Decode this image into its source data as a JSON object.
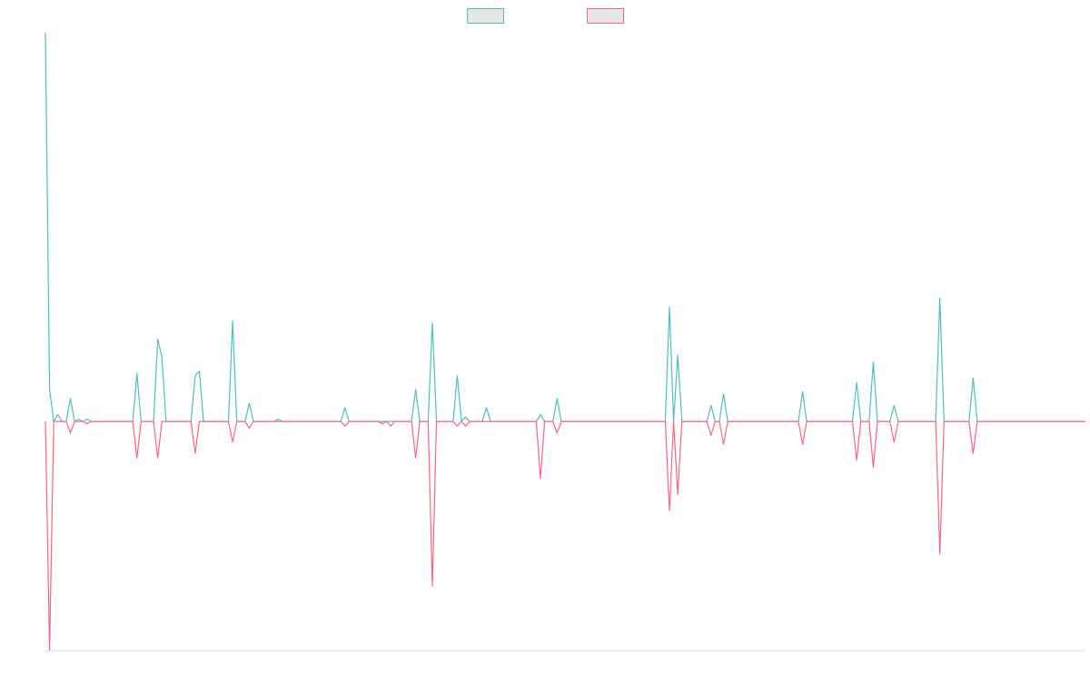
{
  "chart_data": {
    "type": "line",
    "title": "",
    "xlabel": "",
    "ylabel": "",
    "legend": {
      "position": "top-center",
      "entries": [
        {
          "name": "",
          "color": "#4bc0c0"
        },
        {
          "name": "",
          "color": "#ff6384"
        }
      ]
    },
    "grid": false,
    "ylim": [
      -1.0,
      1.7
    ],
    "x_count": 251,
    "series": [
      {
        "name": "",
        "color": "#4bc0c0",
        "fill": "#e6e6e6",
        "spikes": [
          [
            0,
            1.7
          ],
          [
            1,
            0.14
          ],
          [
            3,
            0.03
          ],
          [
            6,
            0.1
          ],
          [
            8,
            0.01
          ],
          [
            10,
            0.01
          ],
          [
            22,
            0.21
          ],
          [
            27,
            0.36
          ],
          [
            28,
            0.28
          ],
          [
            36,
            0.2
          ],
          [
            37,
            0.22
          ],
          [
            45,
            0.44
          ],
          [
            49,
            0.08
          ],
          [
            56,
            0.01
          ],
          [
            72,
            0.06
          ],
          [
            89,
            0.14
          ],
          [
            93,
            0.43
          ],
          [
            99,
            0.2
          ],
          [
            101,
            0.02
          ],
          [
            106,
            0.06
          ],
          [
            119,
            0.03
          ],
          [
            123,
            0.1
          ],
          [
            150,
            0.5
          ],
          [
            152,
            0.29
          ],
          [
            160,
            0.07
          ],
          [
            163,
            0.12
          ],
          [
            182,
            0.13
          ],
          [
            195,
            0.17
          ],
          [
            199,
            0.26
          ],
          [
            204,
            0.07
          ],
          [
            215,
            0.54
          ],
          [
            223,
            0.19
          ]
        ]
      },
      {
        "name": "",
        "color": "#ff6384",
        "fill": "#e6e6e6",
        "spikes": [
          [
            1,
            -1.0
          ],
          [
            6,
            -0.05
          ],
          [
            10,
            -0.01
          ],
          [
            22,
            -0.16
          ],
          [
            27,
            -0.16
          ],
          [
            36,
            -0.14
          ],
          [
            45,
            -0.09
          ],
          [
            49,
            -0.03
          ],
          [
            72,
            -0.02
          ],
          [
            81,
            -0.01
          ],
          [
            83,
            -0.02
          ],
          [
            89,
            -0.16
          ],
          [
            93,
            -0.72
          ],
          [
            99,
            -0.02
          ],
          [
            101,
            -0.02
          ],
          [
            119,
            -0.25
          ],
          [
            123,
            -0.05
          ],
          [
            150,
            -0.39
          ],
          [
            152,
            -0.32
          ],
          [
            160,
            -0.06
          ],
          [
            163,
            -0.1
          ],
          [
            182,
            -0.1
          ],
          [
            195,
            -0.17
          ],
          [
            199,
            -0.2
          ],
          [
            204,
            -0.09
          ],
          [
            215,
            -0.58
          ],
          [
            223,
            -0.14
          ]
        ]
      }
    ]
  }
}
